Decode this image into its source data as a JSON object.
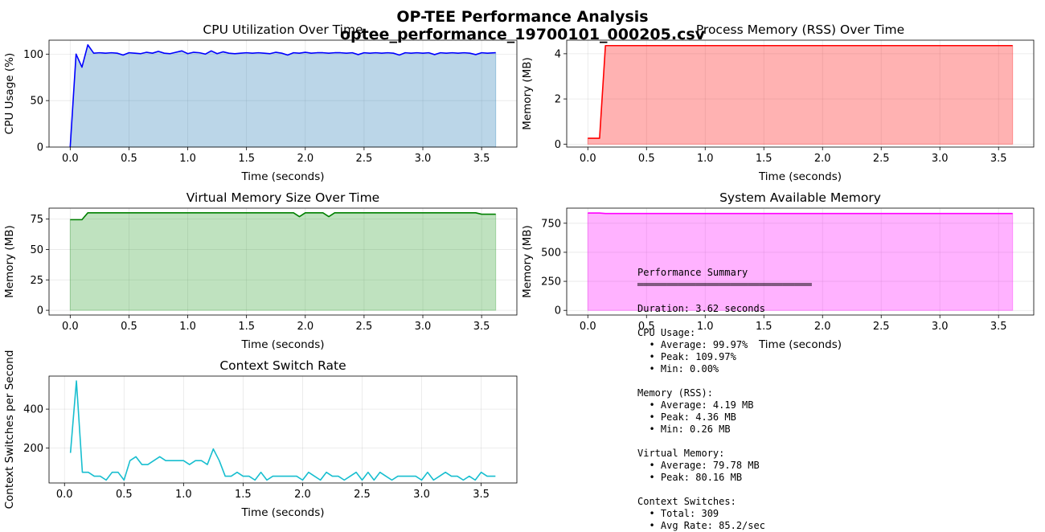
{
  "figure": {
    "title": "OP-TEE Performance Analysis",
    "subtitle": "optee_performance_19700101_000205.csv"
  },
  "chart_data": [
    {
      "id": "cpu",
      "type": "area",
      "title": "CPU Utilization Over Time",
      "xlabel": "Time (seconds)",
      "ylabel": "CPU Usage (%)",
      "xlim": [
        -0.18,
        3.8
      ],
      "ylim": [
        0,
        115
      ],
      "xticks": [
        0.0,
        0.5,
        1.0,
        1.5,
        2.0,
        2.5,
        3.0,
        3.5
      ],
      "yticks": [
        0,
        50,
        100
      ],
      "grid": true,
      "line_color": "#0000ff",
      "fill_color": "#1f77b4",
      "x": [
        0.0,
        0.05,
        0.1,
        0.15,
        0.2,
        0.25,
        0.3,
        0.35,
        0.4,
        0.45,
        0.5,
        0.55,
        0.6,
        0.65,
        0.7,
        0.75,
        0.8,
        0.85,
        0.9,
        0.95,
        1.0,
        1.05,
        1.1,
        1.15,
        1.2,
        1.25,
        1.3,
        1.35,
        1.4,
        1.45,
        1.5,
        1.55,
        1.6,
        1.65,
        1.7,
        1.75,
        1.8,
        1.85,
        1.9,
        1.95,
        2.0,
        2.05,
        2.1,
        2.15,
        2.2,
        2.25,
        2.3,
        2.35,
        2.4,
        2.45,
        2.5,
        2.55,
        2.6,
        2.65,
        2.7,
        2.75,
        2.8,
        2.85,
        2.9,
        2.95,
        3.0,
        3.05,
        3.1,
        3.15,
        3.2,
        3.25,
        3.3,
        3.35,
        3.4,
        3.45,
        3.5,
        3.55,
        3.62
      ],
      "values": [
        0.0,
        100.0,
        86.0,
        110.0,
        101.0,
        101.5,
        101.0,
        101.5,
        101.0,
        99.0,
        101.5,
        101.0,
        100.5,
        102.0,
        101.0,
        103.0,
        101.0,
        100.5,
        102.0,
        103.5,
        100.5,
        102.0,
        101.5,
        100.0,
        103.5,
        100.5,
        102.5,
        101.0,
        100.5,
        101.0,
        101.5,
        101.0,
        101.5,
        101.0,
        100.5,
        102.0,
        101.0,
        99.0,
        101.5,
        101.0,
        102.0,
        101.0,
        101.5,
        101.5,
        101.0,
        101.5,
        101.5,
        101.0,
        101.5,
        99.5,
        101.5,
        101.0,
        101.5,
        101.0,
        101.5,
        101.0,
        99.0,
        101.5,
        101.0,
        101.5,
        101.0,
        101.5,
        99.5,
        101.5,
        101.0,
        101.5,
        101.0,
        101.5,
        101.0,
        99.5,
        101.5,
        101.0,
        101.5
      ]
    },
    {
      "id": "rss",
      "type": "area",
      "title": "Process Memory (RSS) Over Time",
      "xlabel": "Time (seconds)",
      "ylabel": "Memory (MB)",
      "xlim": [
        -0.18,
        3.8
      ],
      "ylim": [
        -0.13,
        4.6
      ],
      "xticks": [
        0.0,
        0.5,
        1.0,
        1.5,
        2.0,
        2.5,
        3.0,
        3.5
      ],
      "yticks": [
        0,
        2,
        4
      ],
      "grid": true,
      "line_color": "#ff0000",
      "fill_color": "#ff0000",
      "x": [
        0.0,
        0.1,
        0.15,
        0.2,
        3.62
      ],
      "values": [
        0.26,
        0.26,
        4.36,
        4.36,
        4.36
      ]
    },
    {
      "id": "vms",
      "type": "area",
      "title": "Virtual Memory Size Over Time",
      "xlabel": "Time (seconds)",
      "ylabel": "Memory (MB)",
      "xlim": [
        -0.18,
        3.8
      ],
      "ylim": [
        -3.9,
        84.0
      ],
      "xticks": [
        0.0,
        0.5,
        1.0,
        1.5,
        2.0,
        2.5,
        3.0,
        3.5
      ],
      "yticks": [
        0,
        25,
        50,
        75
      ],
      "grid": true,
      "line_color": "#008000",
      "fill_color": "#2ca02c",
      "x": [
        0.0,
        0.1,
        0.15,
        1.9,
        1.95,
        2.0,
        2.15,
        2.2,
        2.25,
        3.45,
        3.5,
        3.62
      ],
      "values": [
        74.5,
        74.5,
        80.16,
        80.16,
        77.0,
        80.16,
        80.16,
        77.0,
        80.16,
        80.16,
        79.0,
        79.0
      ]
    },
    {
      "id": "sysmem",
      "type": "area",
      "title": "System Available Memory",
      "xlabel": "Time (seconds)",
      "ylabel": "Memory (MB)",
      "xlim": [
        -0.18,
        3.8
      ],
      "ylim": [
        -40,
        880
      ],
      "xticks": [
        0.0,
        0.5,
        1.0,
        1.5,
        2.0,
        2.5,
        3.0,
        3.5
      ],
      "yticks": [
        0,
        250,
        500,
        750
      ],
      "grid": true,
      "line_color": "#ff00ff",
      "fill_color": "#ff00ff",
      "x": [
        0.0,
        0.1,
        0.15,
        3.62
      ],
      "values": [
        838,
        838,
        834,
        834
      ]
    },
    {
      "id": "ctx",
      "type": "line",
      "title": "Context Switch Rate",
      "xlabel": "Time (seconds)",
      "ylabel": "Context Switches per Second",
      "xlim": [
        -0.13,
        3.8
      ],
      "ylim": [
        20,
        570
      ],
      "xticks": [
        0.0,
        0.5,
        1.0,
        1.5,
        2.0,
        2.5,
        3.0,
        3.5
      ],
      "yticks": [
        200,
        400
      ],
      "grid": true,
      "line_color": "#17becf",
      "x": [
        0.05,
        0.1,
        0.15,
        0.2,
        0.25,
        0.3,
        0.35,
        0.4,
        0.45,
        0.5,
        0.55,
        0.6,
        0.65,
        0.7,
        0.75,
        0.8,
        0.85,
        0.9,
        0.95,
        1.0,
        1.05,
        1.1,
        1.15,
        1.2,
        1.25,
        1.3,
        1.35,
        1.4,
        1.45,
        1.5,
        1.55,
        1.6,
        1.65,
        1.7,
        1.75,
        1.8,
        1.85,
        1.9,
        1.95,
        2.0,
        2.05,
        2.1,
        2.15,
        2.2,
        2.25,
        2.3,
        2.35,
        2.4,
        2.45,
        2.5,
        2.55,
        2.6,
        2.65,
        2.7,
        2.75,
        2.8,
        2.85,
        2.9,
        2.95,
        3.0,
        3.05,
        3.1,
        3.15,
        3.2,
        3.25,
        3.3,
        3.35,
        3.4,
        3.45,
        3.5,
        3.55,
        3.62
      ],
      "values": [
        175,
        545,
        75,
        75,
        55,
        55,
        35,
        75,
        75,
        35,
        135,
        155,
        115,
        115,
        135,
        155,
        135,
        135,
        135,
        135,
        115,
        135,
        135,
        115,
        195,
        135,
        55,
        55,
        75,
        55,
        55,
        35,
        75,
        35,
        55,
        55,
        55,
        55,
        55,
        35,
        75,
        55,
        35,
        75,
        55,
        55,
        35,
        55,
        75,
        35,
        75,
        35,
        75,
        55,
        35,
        55,
        55,
        55,
        55,
        35,
        75,
        35,
        55,
        75,
        55,
        55,
        35,
        55,
        35,
        75,
        55,
        55
      ]
    }
  ],
  "summary": {
    "heading": "Performance Summary",
    "rule": "══════════════════════════════",
    "lines": [
      "",
      "Duration: 3.62 seconds",
      "",
      "CPU Usage:",
      "  • Average: 99.97%",
      "  • Peak: 109.97%",
      "  • Min: 0.00%",
      "",
      "Memory (RSS):",
      "  • Average: 4.19 MB",
      "  • Peak: 4.36 MB",
      "  • Min: 0.26 MB",
      "",
      "Virtual Memory:",
      "  • Average: 79.78 MB",
      "  • Peak: 80.16 MB",
      "",
      "Context Switches:",
      "  • Total: 309",
      "  • Avg Rate: 85.2/sec"
    ]
  }
}
